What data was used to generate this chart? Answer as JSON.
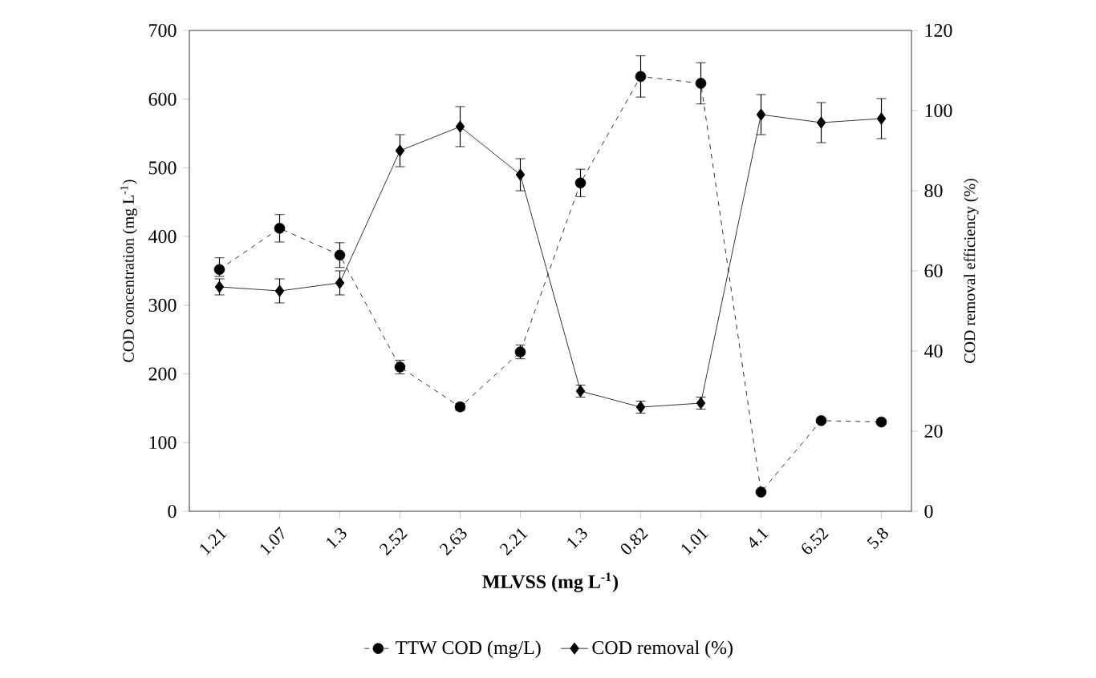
{
  "chart_data": {
    "type": "line",
    "xlabel": "MLVSS (mg L$^{-1}$)",
    "ylabel": "COD concentration (mg L$^{-1}$)",
    "y2label": "COD removal efficiency (%)",
    "categories": [
      "1.21",
      "1.07",
      "1.3",
      "2.52",
      "2.63",
      "2.21",
      "1.3",
      "0.82",
      "1.01",
      "4.1",
      "6.52",
      "5.8"
    ],
    "series": [
      {
        "name": "TTW COD (mg/L)",
        "color": "#000000",
        "marker": "circle",
        "line_style": "dashed",
        "values": [
          352,
          412,
          373,
          210,
          152,
          232,
          478,
          633,
          623,
          28,
          132,
          130
        ],
        "errors": [
          [
            342,
            369
          ],
          20,
          18,
          10,
          5,
          10,
          20,
          30,
          30,
          3,
          3,
          3
        ]
      },
      {
        "name": "COD removal (%)",
        "color": "#000000",
        "marker": "diamond",
        "line_style": "solid",
        "axis": "y2",
        "values": [
          56,
          55,
          57,
          90,
          96,
          84,
          30,
          26,
          27,
          99,
          97,
          98
        ],
        "errors": [
          [
            54,
            58
          ],
          3,
          3,
          4,
          5,
          4,
          1.5,
          1.5,
          1.5,
          5,
          5,
          5
        ]
      }
    ],
    "ylim": [
      0,
      700
    ],
    "yticks": [
      0,
      100,
      200,
      300,
      400,
      500,
      600,
      700
    ],
    "y2lim": [
      0,
      120
    ],
    "y2ticks": [
      0,
      20,
      40,
      60,
      80,
      100,
      120
    ],
    "legend": "bottom"
  }
}
